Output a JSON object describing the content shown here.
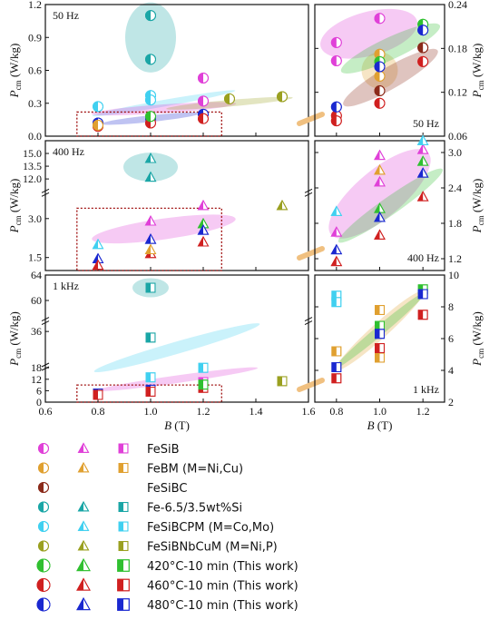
{
  "colors": {
    "FeSiB": "#e040d8",
    "FeBM": "#e0a030",
    "FeSiBC": "#8b2a1a",
    "FeSi": "#1aa6a6",
    "FeSiBCPM": "#40d0f0",
    "FeSiBNbCuM": "#9aa020",
    "T420": "#30c030",
    "T460": "#d02020",
    "T480": "#1a28d0"
  },
  "chart_data": [
    {
      "type": "scatter",
      "panel": "50Hz-left",
      "corner_label": "50 Hz",
      "xlabel": "",
      "ylabel_main": "P",
      "ylabel_sub": "cm",
      "ylabel_unit": " (W/kg)",
      "xlim": [
        0.6,
        1.6
      ],
      "ylim": [
        0.0,
        1.2
      ],
      "yticks": [
        "0.0",
        "0.3",
        "0.6",
        "0.9",
        "1.2"
      ],
      "points": [
        {
          "series": "FeSi",
          "shape": "circle",
          "x": 1.0,
          "y": 1.1
        },
        {
          "series": "FeSi",
          "shape": "circle",
          "x": 1.0,
          "y": 0.7
        },
        {
          "series": "FeSiB",
          "shape": "circle",
          "x": 1.2,
          "y": 0.53
        },
        {
          "series": "FeSiBCPM",
          "shape": "circle",
          "x": 0.8,
          "y": 0.27
        },
        {
          "series": "FeSiBCPM",
          "shape": "circle",
          "x": 1.0,
          "y": 0.37
        },
        {
          "series": "FeSiBCPM",
          "shape": "circle",
          "x": 1.0,
          "y": 0.33
        },
        {
          "series": "FeSiBNbCuM",
          "shape": "circle",
          "x": 1.3,
          "y": 0.34
        },
        {
          "series": "FeSiBNbCuM",
          "shape": "circle",
          "x": 1.5,
          "y": 0.36
        },
        {
          "series": "FeSiB",
          "shape": "circle",
          "x": 1.2,
          "y": 0.32
        },
        {
          "series": "T480",
          "shape": "circle",
          "x": 0.8,
          "y": 0.12
        },
        {
          "series": "T480",
          "shape": "circle",
          "x": 1.0,
          "y": 0.16
        },
        {
          "series": "T480",
          "shape": "circle",
          "x": 1.2,
          "y": 0.2
        },
        {
          "series": "T460",
          "shape": "circle",
          "x": 0.8,
          "y": 0.09
        },
        {
          "series": "T460",
          "shape": "circle",
          "x": 1.0,
          "y": 0.12
        },
        {
          "series": "T460",
          "shape": "circle",
          "x": 1.2,
          "y": 0.16
        },
        {
          "series": "T420",
          "shape": "circle",
          "x": 1.0,
          "y": 0.18
        },
        {
          "series": "FeBM",
          "shape": "circle",
          "x": 0.8,
          "y": 0.1
        }
      ]
    },
    {
      "type": "scatter",
      "panel": "50Hz-right",
      "corner_label": "50 Hz",
      "xlim": [
        0.7,
        1.3
      ],
      "ylim": [
        0.06,
        0.24
      ],
      "yticks": [
        "0.06",
        "0.12",
        "0.18",
        "0.24"
      ],
      "ylabel_main": "P",
      "ylabel_sub": "cm",
      "ylabel_unit": " (W/kg)",
      "points": [
        {
          "series": "FeSiB",
          "shape": "circle",
          "x": 0.8,
          "y": 0.188
        },
        {
          "series": "FeSiB",
          "shape": "circle",
          "x": 0.8,
          "y": 0.163
        },
        {
          "series": "FeSiB",
          "shape": "circle",
          "x": 1.0,
          "y": 0.221
        },
        {
          "series": "FeBM",
          "shape": "circle",
          "x": 1.0,
          "y": 0.172
        },
        {
          "series": "FeBM",
          "shape": "circle",
          "x": 1.0,
          "y": 0.142
        },
        {
          "series": "FeSiBC",
          "shape": "circle",
          "x": 1.0,
          "y": 0.122
        },
        {
          "series": "FeSiBC",
          "shape": "circle",
          "x": 1.2,
          "y": 0.181
        },
        {
          "series": "T420",
          "shape": "circle",
          "x": 1.2,
          "y": 0.213
        },
        {
          "series": "T420",
          "shape": "circle",
          "x": 1.0,
          "y": 0.162
        },
        {
          "series": "T460",
          "shape": "circle",
          "x": 0.8,
          "y": 0.088
        },
        {
          "series": "T460",
          "shape": "circle",
          "x": 0.8,
          "y": 0.081
        },
        {
          "series": "T460",
          "shape": "circle",
          "x": 1.0,
          "y": 0.105
        },
        {
          "series": "T460",
          "shape": "circle",
          "x": 1.2,
          "y": 0.162
        },
        {
          "series": "T480",
          "shape": "circle",
          "x": 0.8,
          "y": 0.1
        },
        {
          "series": "T480",
          "shape": "circle",
          "x": 1.0,
          "y": 0.155
        },
        {
          "series": "T480",
          "shape": "circle",
          "x": 1.2,
          "y": 0.205
        }
      ]
    },
    {
      "type": "scatter",
      "panel": "400Hz-left",
      "corner_label": "400 Hz",
      "xlim": [
        0.6,
        1.6
      ],
      "ylim_lower": [
        1.0,
        4.0
      ],
      "ylim_upper": [
        11.0,
        16.5
      ],
      "yticks": [
        "1.5",
        "3.0",
        "12.0",
        "13.5",
        "15.0"
      ],
      "ylabel_main": "P",
      "ylabel_sub": "cm",
      "ylabel_unit": " (W/kg)",
      "points": [
        {
          "series": "FeSi",
          "shape": "triangle",
          "x": 1.0,
          "y": 14.4
        },
        {
          "series": "FeSi",
          "shape": "triangle",
          "x": 1.0,
          "y": 12.2
        },
        {
          "series": "FeSiB",
          "shape": "triangle",
          "x": 1.2,
          "y": 3.5
        },
        {
          "series": "FeSiBNbCuM",
          "shape": "triangle",
          "x": 1.5,
          "y": 3.5
        },
        {
          "series": "FeSiBCPM",
          "shape": "triangle",
          "x": 0.8,
          "y": 2.0
        },
        {
          "series": "FeSiB",
          "shape": "triangle",
          "x": 1.0,
          "y": 2.9
        },
        {
          "series": "T420",
          "shape": "triangle",
          "x": 1.2,
          "y": 2.8
        },
        {
          "series": "T480",
          "shape": "triangle",
          "x": 0.8,
          "y": 1.45
        },
        {
          "series": "T480",
          "shape": "triangle",
          "x": 1.0,
          "y": 2.2
        },
        {
          "series": "T480",
          "shape": "triangle",
          "x": 1.2,
          "y": 2.55
        },
        {
          "series": "T460",
          "shape": "triangle",
          "x": 0.8,
          "y": 1.2
        },
        {
          "series": "T460",
          "shape": "triangle",
          "x": 1.0,
          "y": 1.65
        },
        {
          "series": "T460",
          "shape": "triangle",
          "x": 1.2,
          "y": 2.1
        },
        {
          "series": "FeBM",
          "shape": "triangle",
          "x": 1.0,
          "y": 1.8
        }
      ]
    },
    {
      "type": "scatter",
      "panel": "400Hz-right",
      "corner_label": "400 Hz",
      "xlim": [
        0.7,
        1.3
      ],
      "ylim": [
        1.0,
        3.2
      ],
      "yticks": [
        "1.2",
        "1.8",
        "2.4",
        "3.0"
      ],
      "ylabel_main": "P",
      "ylabel_sub": "cm",
      "ylabel_unit": " (W/kg)",
      "points": [
        {
          "series": "FeSiB",
          "shape": "triangle",
          "x": 0.8,
          "y": 1.65
        },
        {
          "series": "FeSiB",
          "shape": "triangle",
          "x": 1.0,
          "y": 2.95
        },
        {
          "series": "FeSiB",
          "shape": "triangle",
          "x": 1.0,
          "y": 2.5
        },
        {
          "series": "FeSiB",
          "shape": "triangle",
          "x": 1.2,
          "y": 3.05
        },
        {
          "series": "FeBM",
          "shape": "triangle",
          "x": 1.0,
          "y": 2.7
        },
        {
          "series": "FeSiBCPM",
          "shape": "triangle",
          "x": 0.8,
          "y": 2.0
        },
        {
          "series": "FeSiBCPM",
          "shape": "triangle",
          "x": 1.2,
          "y": 3.2
        },
        {
          "series": "T420",
          "shape": "triangle",
          "x": 1.0,
          "y": 2.05
        },
        {
          "series": "T420",
          "shape": "triangle",
          "x": 1.2,
          "y": 2.85
        },
        {
          "series": "T460",
          "shape": "triangle",
          "x": 0.8,
          "y": 1.15
        },
        {
          "series": "T460",
          "shape": "triangle",
          "x": 1.0,
          "y": 1.6
        },
        {
          "series": "T460",
          "shape": "triangle",
          "x": 1.2,
          "y": 2.25
        },
        {
          "series": "T480",
          "shape": "triangle",
          "x": 0.8,
          "y": 1.35
        },
        {
          "series": "T480",
          "shape": "triangle",
          "x": 1.0,
          "y": 1.9
        },
        {
          "series": "T480",
          "shape": "triangle",
          "x": 1.2,
          "y": 2.65
        }
      ]
    },
    {
      "type": "scatter",
      "panel": "1kHz-left",
      "corner_label": "1 kHz",
      "xlim": [
        0.6,
        1.6
      ],
      "xticks": [
        "0.6",
        "0.8",
        "1.0",
        "1.2",
        "1.4",
        "1.6"
      ],
      "xlabel_main": "B",
      "xlabel_unit": " (T)",
      "ylim_lower": [
        0,
        20
      ],
      "ylim_mid": [
        20,
        40
      ],
      "ylim_upper": [
        58,
        64
      ],
      "yticks": [
        "0",
        "6",
        "12",
        "18",
        "36",
        "60",
        "64"
      ],
      "ylabel_main": "P",
      "ylabel_sub": "cm",
      "ylabel_unit": " (W/kg)",
      "points": [
        {
          "series": "FeSi",
          "shape": "square",
          "x": 1.0,
          "y": 62.0
        },
        {
          "series": "FeSi",
          "shape": "square",
          "x": 1.0,
          "y": 33.0
        },
        {
          "series": "FeSiBCPM",
          "shape": "square",
          "x": 1.0,
          "y": 13.0
        },
        {
          "series": "FeSiBCPM",
          "shape": "square",
          "x": 1.2,
          "y": 18.0
        },
        {
          "series": "FeSiB",
          "shape": "square",
          "x": 1.2,
          "y": 10.5
        },
        {
          "series": "FeSiBNbCuM",
          "shape": "square",
          "x": 1.5,
          "y": 11.0
        },
        {
          "series": "T480",
          "shape": "square",
          "x": 0.8,
          "y": 4.5
        },
        {
          "series": "T480",
          "shape": "square",
          "x": 1.0,
          "y": 6.5
        },
        {
          "series": "T480",
          "shape": "square",
          "x": 1.2,
          "y": 8.8
        },
        {
          "series": "T460",
          "shape": "square",
          "x": 0.8,
          "y": 3.8
        },
        {
          "series": "T460",
          "shape": "square",
          "x": 1.0,
          "y": 5.5
        },
        {
          "series": "T460",
          "shape": "square",
          "x": 1.2,
          "y": 7.5
        },
        {
          "series": "T420",
          "shape": "square",
          "x": 1.2,
          "y": 9.2
        }
      ]
    },
    {
      "type": "scatter",
      "panel": "1kHz-right",
      "corner_label": "1 kHz",
      "xlim": [
        0.7,
        1.3
      ],
      "xticks": [
        "0.8",
        "1.0",
        "1.2"
      ],
      "xlabel_main": "B",
      "xlabel_unit": " (T)",
      "ylim": [
        2,
        10
      ],
      "yticks": [
        "2",
        "4",
        "6",
        "8",
        "10"
      ],
      "ylabel_main": "P",
      "ylabel_sub": "cm",
      "ylabel_unit": " (W/kg)",
      "points": [
        {
          "series": "FeSiBCPM",
          "shape": "square",
          "x": 0.8,
          "y": 8.7
        },
        {
          "series": "FeSiBCPM",
          "shape": "square",
          "x": 0.8,
          "y": 8.3
        },
        {
          "series": "FeBM",
          "shape": "square",
          "x": 0.8,
          "y": 5.2
        },
        {
          "series": "FeBM",
          "shape": "square",
          "x": 1.0,
          "y": 4.8
        },
        {
          "series": "FeBM",
          "shape": "square",
          "x": 1.0,
          "y": 7.8
        },
        {
          "series": "T420",
          "shape": "square",
          "x": 1.0,
          "y": 6.8
        },
        {
          "series": "T420",
          "shape": "square",
          "x": 1.2,
          "y": 9.1
        },
        {
          "series": "T460",
          "shape": "square",
          "x": 0.8,
          "y": 3.5
        },
        {
          "series": "T460",
          "shape": "square",
          "x": 1.0,
          "y": 5.4
        },
        {
          "series": "T460",
          "shape": "square",
          "x": 1.2,
          "y": 7.5
        },
        {
          "series": "T480",
          "shape": "square",
          "x": 0.8,
          "y": 4.2
        },
        {
          "series": "T480",
          "shape": "square",
          "x": 1.0,
          "y": 6.3
        },
        {
          "series": "T480",
          "shape": "square",
          "x": 1.2,
          "y": 8.8
        }
      ]
    }
  ],
  "legend": [
    {
      "label": "FeSiB",
      "series": "FeSiB",
      "shapes": [
        "circle",
        "triangle",
        "square"
      ]
    },
    {
      "label": "FeBM (M=Ni,Cu)",
      "series": "FeBM",
      "shapes": [
        "circle",
        "triangle",
        "square"
      ]
    },
    {
      "label": "FeSiBC",
      "series": "FeSiBC",
      "shapes": [
        "circle"
      ]
    },
    {
      "label": "Fe-6.5/3.5wt%Si",
      "series": "FeSi",
      "shapes": [
        "circle",
        "triangle",
        "square"
      ]
    },
    {
      "label": "FeSiBCPM (M=Co,Mo)",
      "series": "FeSiBCPM",
      "shapes": [
        "circle",
        "triangle",
        "square"
      ]
    },
    {
      "label": "FeSiBNbCuM (M=Ni,P)",
      "series": "FeSiBNbCuM",
      "shapes": [
        "circle",
        "triangle",
        "square"
      ]
    },
    {
      "label": "420°C-10 min (This work)",
      "series": "T420",
      "shapes": [
        "circle",
        "triangle",
        "square"
      ]
    },
    {
      "label": "460°C-10 min (This work)",
      "series": "T460",
      "shapes": [
        "circle",
        "triangle",
        "square"
      ]
    },
    {
      "label": "480°C-10 min (This work)",
      "series": "T480",
      "shapes": [
        "circle",
        "triangle",
        "square"
      ]
    }
  ]
}
